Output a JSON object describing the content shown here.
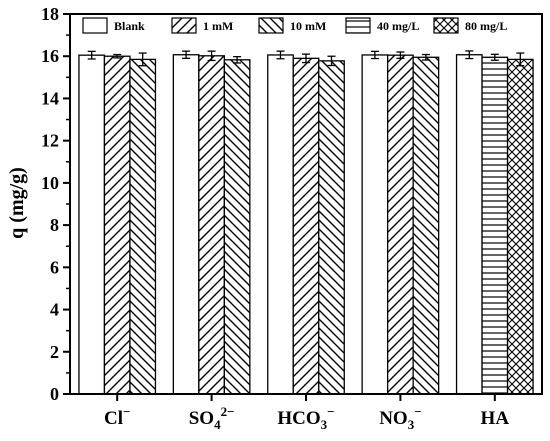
{
  "chart_data": {
    "type": "bar",
    "ylabel": "q (mg/g)",
    "xlabel": "",
    "title": "",
    "ylim": [
      0,
      18
    ],
    "yticks": [
      0,
      2,
      4,
      6,
      8,
      10,
      12,
      14,
      16,
      18
    ],
    "legend_position": "top",
    "categories": [
      {
        "main": "Cl",
        "sub": "",
        "sup": "−"
      },
      {
        "main": "SO",
        "sub": "4",
        "sup": "2−"
      },
      {
        "main": "HCO",
        "sub": "3",
        "sup": "−"
      },
      {
        "main": "NO",
        "sub": "3",
        "sup": "−"
      },
      {
        "main": "HA",
        "sub": "",
        "sup": ""
      }
    ],
    "series": [
      {
        "name": "Blank",
        "pattern": "blank",
        "values": [
          16.05,
          16.07,
          16.06,
          16.06,
          16.07
        ],
        "errors": [
          0.18,
          0.17,
          0.18,
          0.17,
          0.18
        ]
      },
      {
        "name": "1 mM",
        "pattern": "diag-fwd",
        "values": [
          16.0,
          16.02,
          15.9,
          16.05,
          null
        ],
        "errors": [
          0.08,
          0.22,
          0.2,
          0.15,
          null
        ]
      },
      {
        "name": "10 mM",
        "pattern": "diag-back",
        "values": [
          15.85,
          15.83,
          15.78,
          15.95,
          null
        ],
        "errors": [
          0.3,
          0.15,
          0.22,
          0.13,
          null
        ]
      },
      {
        "name": "40 mg/L",
        "pattern": "horizontal",
        "values": [
          null,
          null,
          null,
          null,
          15.95
        ],
        "errors": [
          null,
          null,
          null,
          null,
          0.14
        ]
      },
      {
        "name": "80 mg/L",
        "pattern": "crosshatch",
        "values": [
          null,
          null,
          null,
          null,
          15.85
        ],
        "errors": [
          null,
          null,
          null,
          null,
          0.3
        ]
      }
    ]
  }
}
